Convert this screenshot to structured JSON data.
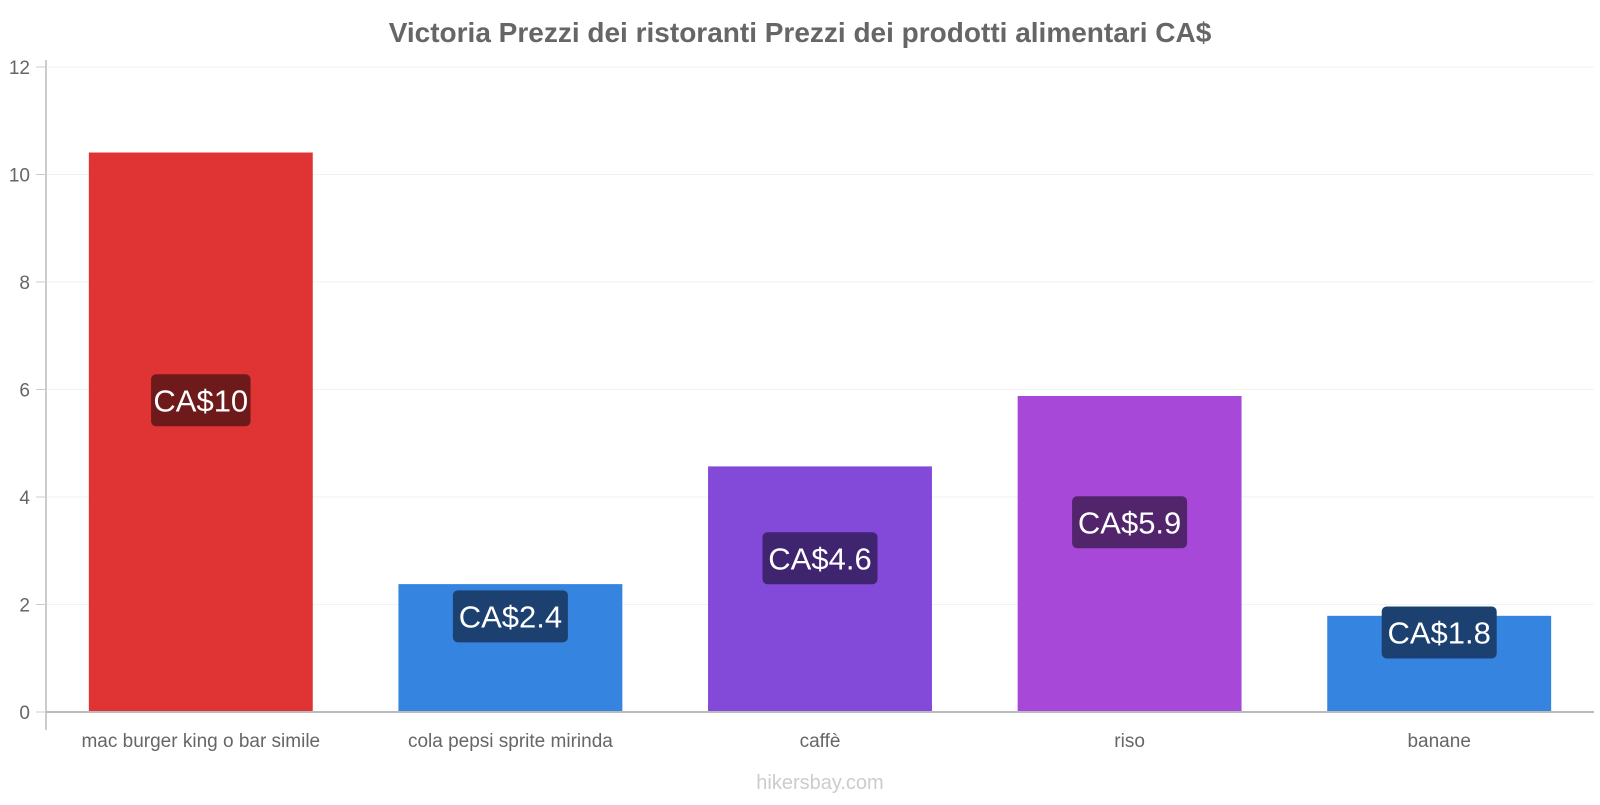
{
  "chart_data": {
    "type": "bar",
    "title": "Victoria Prezzi dei ristoranti Prezzi dei prodotti alimentari CA$",
    "xlabel": "",
    "ylabel": "",
    "ylim": [
      0,
      12
    ],
    "yticks": [
      0,
      2,
      4,
      6,
      8,
      10,
      12
    ],
    "grid": true,
    "categories": [
      "mac burger king o bar simile",
      "cola pepsi sprite mirinda",
      "caffè",
      "riso",
      "banane"
    ],
    "values": [
      10.4,
      2.37,
      4.56,
      5.87,
      1.78
    ],
    "data_labels": [
      "CA$10",
      "CA$2.4",
      "CA$4.6",
      "CA$5.9",
      "CA$1.8"
    ],
    "bar_colors": [
      "#e03434",
      "#3584e0",
      "#8349d9",
      "#a748d9",
      "#3584e0"
    ],
    "label_colors": [
      "#6e1a1a",
      "#1c4170",
      "#3f2470",
      "#52246c",
      "#1c4170"
    ],
    "label_positions": [
      5.8,
      1.78,
      2.86,
      3.53,
      1.48
    ]
  },
  "footer": {
    "source": "hikersbay.com"
  }
}
